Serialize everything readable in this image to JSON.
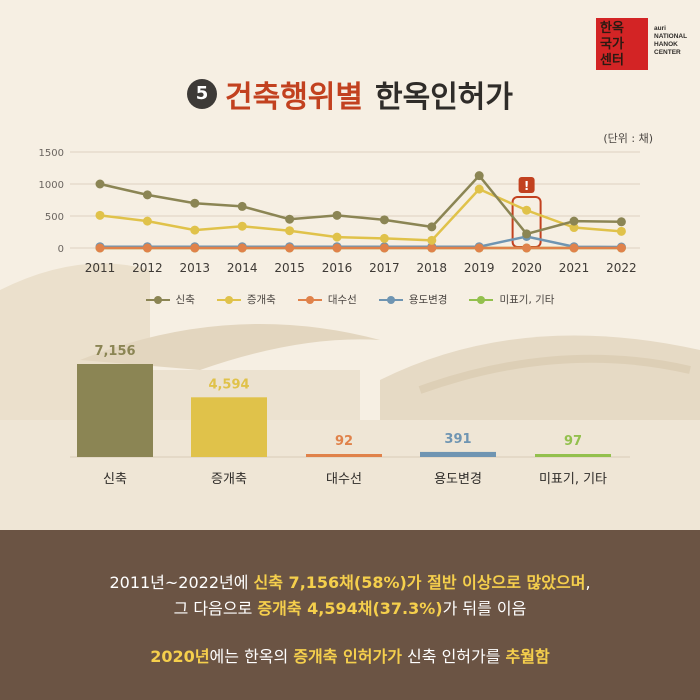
{
  "title": {
    "number": "5",
    "highlight": "건축행위별",
    "rest": "한옥인허가"
  },
  "logo": {
    "hanja_lines": [
      "한옥",
      "국가",
      "센터"
    ],
    "english": "auri NATIONAL HANOK CENTER"
  },
  "unit": "(단위 : 채)",
  "alert_glyph": "!",
  "colors": {
    "shinchuk": "#8b8554",
    "jeunggaechuk": "#e0c24a",
    "daesuseon": "#e0824a",
    "yongdo": "#6f95b2",
    "mipyogi": "#93c04d",
    "accent": "#c2411f",
    "bottom_bg": "#6b5444",
    "highlight_text": "#f5cf4c"
  },
  "chart_data": [
    {
      "type": "line",
      "x": [
        "2011",
        "2012",
        "2013",
        "2014",
        "2015",
        "2016",
        "2017",
        "2018",
        "2019",
        "2020",
        "2021",
        "2022"
      ],
      "ylim": [
        0,
        1500
      ],
      "yticks": [
        "0",
        "500",
        "1000",
        "1500"
      ],
      "grid": true,
      "legend_position": "bottom",
      "series": [
        {
          "name": "신축",
          "values": [
            1000,
            830,
            700,
            650,
            450,
            510,
            440,
            330,
            1130,
            220,
            420,
            410
          ]
        },
        {
          "name": "증개축",
          "values": [
            510,
            420,
            280,
            340,
            270,
            170,
            150,
            120,
            920,
            590,
            320,
            260
          ]
        },
        {
          "name": "대수선",
          "values": [
            0,
            0,
            0,
            0,
            0,
            0,
            0,
            0,
            0,
            0,
            0,
            0
          ]
        },
        {
          "name": "용도변경",
          "values": [
            20,
            20,
            20,
            20,
            20,
            20,
            20,
            20,
            20,
            180,
            20,
            15
          ]
        },
        {
          "name": "미표기, 기타",
          "values": [
            0,
            0,
            0,
            0,
            0,
            0,
            0,
            0,
            0,
            0,
            0,
            0
          ]
        }
      ],
      "annotation": {
        "x": "2020",
        "marker": "!"
      }
    },
    {
      "type": "bar",
      "categories": [
        "신축",
        "증개축",
        "대수선",
        "용도변경",
        "미표기, 기타"
      ],
      "values": [
        7156,
        4594,
        92,
        391,
        97
      ],
      "value_labels": [
        "7,156",
        "4,594",
        "92",
        "391",
        "97"
      ]
    }
  ],
  "summary": {
    "line1": [
      {
        "text": "2011년~2022년에 ",
        "hl": false
      },
      {
        "text": "신축 7,156채(58%)가 절반 이상으로 많았으며",
        "hl": true
      },
      {
        "text": ",",
        "hl": false
      }
    ],
    "line2": [
      {
        "text": "그 다음으로 ",
        "hl": false
      },
      {
        "text": "증개축 4,594채(37.3%)",
        "hl": true
      },
      {
        "text": "가 뒤를 이음",
        "hl": false
      }
    ],
    "line3": [
      {
        "text": "2020년",
        "hl": true
      },
      {
        "text": "에는 한옥의 ",
        "hl": false
      },
      {
        "text": "증개축 인허가가",
        "hl": true
      },
      {
        "text": " 신축 인허가를 ",
        "hl": false
      },
      {
        "text": "추월함",
        "hl": true
      }
    ]
  }
}
